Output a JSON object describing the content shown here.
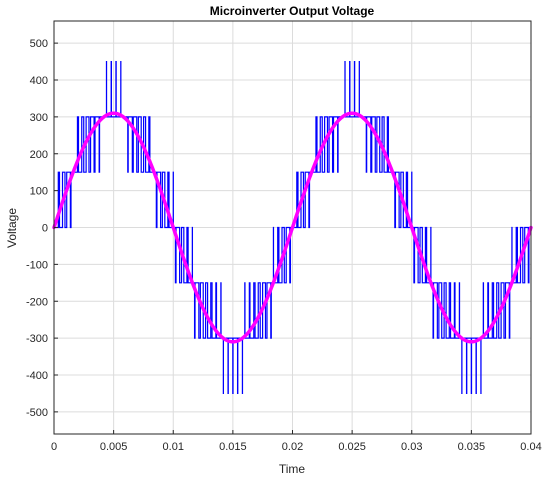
{
  "chart_data": {
    "type": "line",
    "title": "Microinverter Output Voltage",
    "xlabel": "Time",
    "ylabel": "Voltage",
    "xlim": [
      0,
      0.04
    ],
    "ylim": [
      -560,
      560
    ],
    "grid": true,
    "x_ticks": [
      0,
      0.005,
      0.01,
      0.015,
      0.02,
      0.025,
      0.03,
      0.035,
      0.04
    ],
    "x_tick_labels": [
      "0",
      "0.005",
      "0.01",
      "0.015",
      "0.02",
      "0.025",
      "0.03",
      "0.035",
      "0.04"
    ],
    "y_ticks": [
      -500,
      -400,
      -300,
      -200,
      -100,
      0,
      100,
      200,
      300,
      400,
      500
    ],
    "y_tick_labels": [
      "-500",
      "-400",
      "-300",
      "-200",
      "-100",
      "0",
      "100",
      "200",
      "300",
      "400",
      "500"
    ],
    "series": [
      {
        "style": "multilevel-pwm",
        "color": "#0000ff",
        "levels": [
          -450,
          -300,
          -150,
          0,
          150,
          300,
          450
        ],
        "step_volts": 150,
        "amplitude": 310,
        "frequency_hz": 50,
        "carrier_frequency_hz": 2500
      },
      {
        "style": "sinusoid",
        "color": "#ff00ff",
        "amplitude": 310,
        "frequency_hz": 50
      }
    ]
  }
}
